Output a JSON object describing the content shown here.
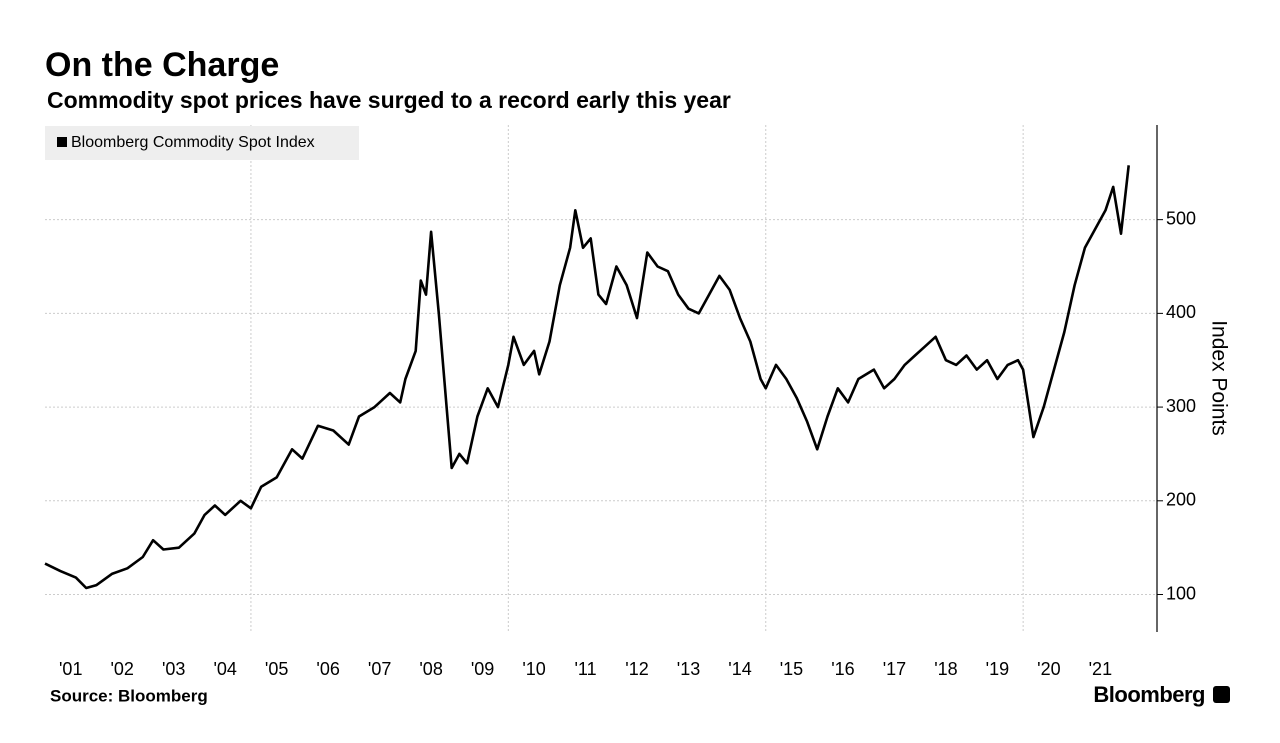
{
  "chart_data": {
    "type": "line",
    "title": "On the Charge",
    "subtitle": "Commodity spot prices have surged to a record early this year",
    "source": "Source: Bloomberg",
    "logo": "Bloomberg",
    "y_label": "Index Points",
    "grid": true,
    "legend": "upper left",
    "xlim": [
      2001,
      2022.6
    ],
    "ylim": [
      60,
      601
    ],
    "yticks": [
      100,
      200,
      300,
      400,
      500
    ],
    "xticks": [
      {
        "value": 2001,
        "label": "'01"
      },
      {
        "value": 2002,
        "label": "'02"
      },
      {
        "value": 2003,
        "label": "'03"
      },
      {
        "value": 2004,
        "label": "'04"
      },
      {
        "value": 2005,
        "label": "'05"
      },
      {
        "value": 2006,
        "label": "'06"
      },
      {
        "value": 2007,
        "label": "'07"
      },
      {
        "value": 2008,
        "label": "'08"
      },
      {
        "value": 2009,
        "label": "'09"
      },
      {
        "value": 2010,
        "label": "'10"
      },
      {
        "value": 2011,
        "label": "'11"
      },
      {
        "value": 2012,
        "label": "'12"
      },
      {
        "value": 2013,
        "label": "'13"
      },
      {
        "value": 2014,
        "label": "'14"
      },
      {
        "value": 2015,
        "label": "'15"
      },
      {
        "value": 2016,
        "label": "'16"
      },
      {
        "value": 2017,
        "label": "'17"
      },
      {
        "value": 2018,
        "label": "'18"
      },
      {
        "value": 2019,
        "label": "'19"
      },
      {
        "value": 2020,
        "label": "'20"
      },
      {
        "value": 2021,
        "label": "'21"
      }
    ],
    "x": [
      2001.0,
      2001.3,
      2001.6,
      2001.8,
      2002.0,
      2002.3,
      2002.6,
      2002.9,
      2003.1,
      2003.3,
      2003.6,
      2003.9,
      2004.1,
      2004.3,
      2004.5,
      2004.8,
      2005.0,
      2005.2,
      2005.5,
      2005.8,
      2006.0,
      2006.3,
      2006.6,
      2006.9,
      2007.1,
      2007.4,
      2007.7,
      2007.9,
      2008.0,
      2008.2,
      2008.3,
      2008.4,
      2008.5,
      2008.65,
      2008.8,
      2008.9,
      2009.05,
      2009.2,
      2009.4,
      2009.6,
      2009.8,
      2010.0,
      2010.1,
      2010.3,
      2010.5,
      2010.6,
      2010.8,
      2011.0,
      2011.2,
      2011.3,
      2011.45,
      2011.6,
      2011.75,
      2011.9,
      2012.1,
      2012.3,
      2012.5,
      2012.7,
      2012.9,
      2013.1,
      2013.3,
      2013.5,
      2013.7,
      2013.9,
      2014.1,
      2014.3,
      2014.5,
      2014.7,
      2014.9,
      2015.0,
      2015.2,
      2015.4,
      2015.6,
      2015.8,
      2016.0,
      2016.2,
      2016.4,
      2016.6,
      2016.8,
      2017.1,
      2017.3,
      2017.5,
      2017.7,
      2017.9,
      2018.1,
      2018.3,
      2018.5,
      2018.7,
      2018.9,
      2019.1,
      2019.3,
      2019.5,
      2019.7,
      2019.9,
      2020.0,
      2020.2,
      2020.4,
      2020.6,
      2020.8,
      2021.0,
      2021.2,
      2021.4,
      2021.6,
      2021.75,
      2021.9,
      2022.05
    ],
    "series": [
      {
        "name": "Bloomberg Commodity Spot Index",
        "color": "#000000",
        "values": [
          133,
          125,
          118,
          107,
          110,
          122,
          128,
          140,
          158,
          148,
          150,
          165,
          185,
          195,
          185,
          200,
          192,
          215,
          225,
          255,
          245,
          280,
          275,
          260,
          290,
          300,
          315,
          305,
          330,
          360,
          435,
          420,
          487,
          400,
          300,
          235,
          250,
          240,
          290,
          320,
          300,
          345,
          375,
          345,
          360,
          335,
          370,
          430,
          470,
          510,
          470,
          480,
          420,
          410,
          450,
          430,
          395,
          465,
          450,
          445,
          420,
          405,
          400,
          420,
          440,
          425,
          395,
          370,
          330,
          320,
          345,
          330,
          310,
          285,
          255,
          290,
          320,
          305,
          330,
          340,
          320,
          330,
          345,
          355,
          365,
          375,
          350,
          345,
          355,
          340,
          350,
          330,
          345,
          350,
          340,
          268,
          300,
          340,
          380,
          430,
          470,
          490,
          510,
          535,
          485,
          558
        ]
      }
    ]
  }
}
